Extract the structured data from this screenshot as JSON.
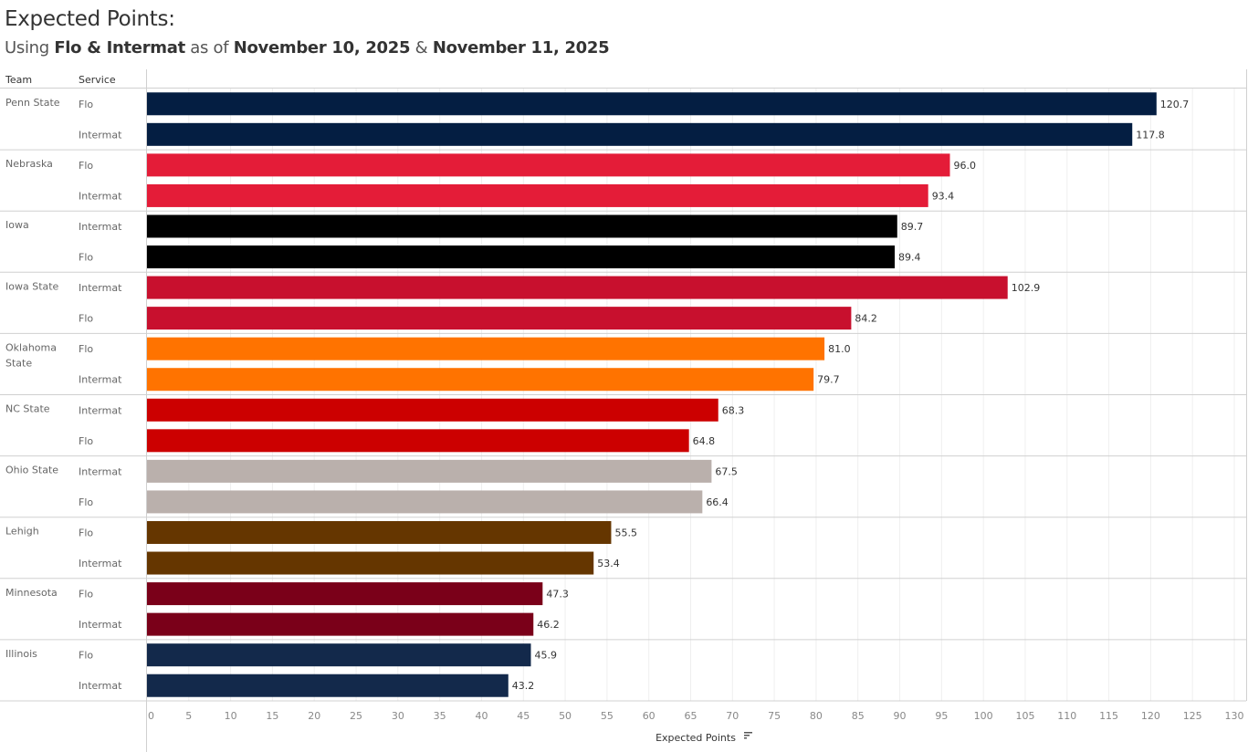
{
  "header": {
    "title": "Expected Points:",
    "subtitle_parts": [
      "Using ",
      "Flo & Intermat",
      " as of ",
      "November 10, 2025",
      " & ",
      "November 11, 2025"
    ],
    "col_team": "Team",
    "col_service": "Service"
  },
  "chart_data": {
    "type": "bar",
    "orientation": "horizontal",
    "title": "Expected Points:",
    "subtitle": "Using Flo & Intermat as of November 10, 2025 & November 11, 2025",
    "xlabel": "Expected Points",
    "ylabel": "",
    "xlim": [
      0,
      130
    ],
    "xticks": [
      0,
      5,
      10,
      15,
      20,
      25,
      30,
      35,
      40,
      45,
      50,
      55,
      60,
      65,
      70,
      75,
      80,
      85,
      90,
      95,
      100,
      105,
      110,
      115,
      120,
      125,
      130
    ],
    "grid": true,
    "sort_icon": "sort-descending-icon",
    "groups": [
      {
        "team": "Penn State",
        "color": "#041E42",
        "rows": [
          {
            "service": "Flo",
            "value": 120.7
          },
          {
            "service": "Intermat",
            "value": 117.8
          }
        ]
      },
      {
        "team": "Nebraska",
        "color": "#E41C38",
        "rows": [
          {
            "service": "Flo",
            "value": 96.0
          },
          {
            "service": "Intermat",
            "value": 93.4
          }
        ]
      },
      {
        "team": "Iowa",
        "color": "#000000",
        "rows": [
          {
            "service": "Intermat",
            "value": 89.7
          },
          {
            "service": "Flo",
            "value": 89.4
          }
        ]
      },
      {
        "team": "Iowa State",
        "color": "#C8102E",
        "rows": [
          {
            "service": "Intermat",
            "value": 102.9
          },
          {
            "service": "Flo",
            "value": 84.2
          }
        ]
      },
      {
        "team": "Oklahoma State",
        "color": "#FF7300",
        "rows": [
          {
            "service": "Flo",
            "value": 81.0
          },
          {
            "service": "Intermat",
            "value": 79.7
          }
        ]
      },
      {
        "team": "NC State",
        "color": "#CC0000",
        "rows": [
          {
            "service": "Intermat",
            "value": 68.3
          },
          {
            "service": "Flo",
            "value": 64.8
          }
        ]
      },
      {
        "team": "Ohio State",
        "color": "#BAB0AC",
        "rows": [
          {
            "service": "Intermat",
            "value": 67.5
          },
          {
            "service": "Flo",
            "value": 66.4
          }
        ]
      },
      {
        "team": "Lehigh",
        "color": "#653600",
        "rows": [
          {
            "service": "Flo",
            "value": 55.5
          },
          {
            "service": "Intermat",
            "value": 53.4
          }
        ]
      },
      {
        "team": "Minnesota",
        "color": "#7A0019",
        "rows": [
          {
            "service": "Flo",
            "value": 47.3
          },
          {
            "service": "Intermat",
            "value": 46.2
          }
        ]
      },
      {
        "team": "Illinois",
        "color": "#13294B",
        "rows": [
          {
            "service": "Flo",
            "value": 45.9
          },
          {
            "service": "Intermat",
            "value": 43.2
          }
        ]
      }
    ]
  }
}
